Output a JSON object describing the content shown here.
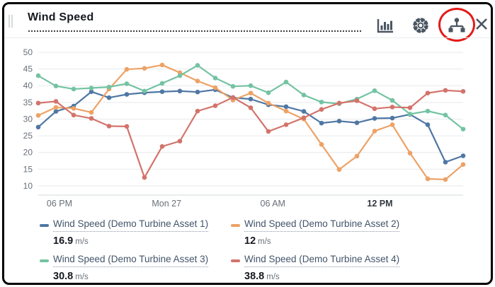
{
  "widget": {
    "title": "Wind Speed",
    "toolbar": {
      "icons": [
        "bar-chart",
        "settings-gear",
        "asset-tree",
        "close"
      ],
      "annotation_color": "#e31b18"
    }
  },
  "chart_data": {
    "type": "line",
    "title": "Wind Speed",
    "grid": true,
    "marker": "circle",
    "y_axis": {
      "ticks": [
        50,
        45,
        40,
        35,
        30,
        25,
        20,
        15,
        10
      ],
      "range": [
        10,
        50
      ],
      "label": ""
    },
    "x_axis": {
      "tick_labels": [
        "06 PM",
        "Mon 27",
        "06 AM",
        "12 PM"
      ],
      "tick_positions": [
        1.2,
        7.25,
        13.25,
        19.3
      ],
      "bold_tick": "12 PM",
      "points_per_series": 25
    },
    "series": [
      {
        "name": "Wind Speed (Demo Turbine Asset 1)",
        "color": "#4f77a3",
        "values": [
          27.6,
          32.3,
          33.9,
          38.2,
          36.4,
          37.4,
          37.9,
          38.2,
          38.4,
          38.1,
          38.8,
          36.4,
          36.0,
          34.3,
          33.7,
          32.3,
          28.8,
          29.4,
          28.9,
          30.2,
          30.3,
          31.4,
          28.3,
          17.1,
          19.0
        ]
      },
      {
        "name": "Wind Speed (Demo Turbine Asset 2)",
        "color": "#eda266",
        "values": [
          31.1,
          33.5,
          33.2,
          32.0,
          39.0,
          44.9,
          45.2,
          46.2,
          43.9,
          41.4,
          39.4,
          35.7,
          37.8,
          34.8,
          32.4,
          30.0,
          22.4,
          14.9,
          18.9,
          26.4,
          28.3,
          19.8,
          12.1,
          11.9,
          16.4
        ]
      },
      {
        "name": "Wind Speed (Demo Turbine Asset 3)",
        "color": "#74c3a2",
        "values": [
          43.0,
          39.9,
          39.0,
          39.3,
          39.6,
          40.6,
          38.4,
          40.7,
          43.0,
          46.1,
          42.3,
          39.8,
          40.0,
          37.9,
          41.1,
          37.2,
          35.1,
          34.6,
          36.0,
          38.5,
          35.6,
          31.5,
          32.4,
          31.2,
          27.0
        ]
      },
      {
        "name": "Wind Speed (Demo Turbine Asset 4)",
        "color": "#d3736b",
        "values": [
          34.8,
          35.3,
          31.2,
          30.2,
          27.9,
          27.8,
          12.5,
          21.8,
          23.4,
          32.4,
          34.0,
          36.5,
          33.4,
          26.3,
          28.3,
          30.4,
          32.9,
          34.8,
          35.5,
          33.1,
          33.6,
          33.4,
          37.8,
          38.6,
          38.3
        ]
      }
    ]
  },
  "legend": {
    "items": [
      {
        "label": "Wind Speed (Demo Turbine Asset 1)",
        "value": "16.9",
        "unit": "m/s",
        "color": "#4f77a3"
      },
      {
        "label": "Wind Speed (Demo Turbine Asset 2)",
        "value": "12",
        "unit": "m/s",
        "color": "#eda266"
      },
      {
        "label": "Wind Speed (Demo Turbine Asset 3)",
        "value": "30.8",
        "unit": "m/s",
        "color": "#74c3a2"
      },
      {
        "label": "Wind Speed (Demo Turbine Asset 4)",
        "value": "38.8",
        "unit": "m/s",
        "color": "#d3736b"
      }
    ]
  }
}
